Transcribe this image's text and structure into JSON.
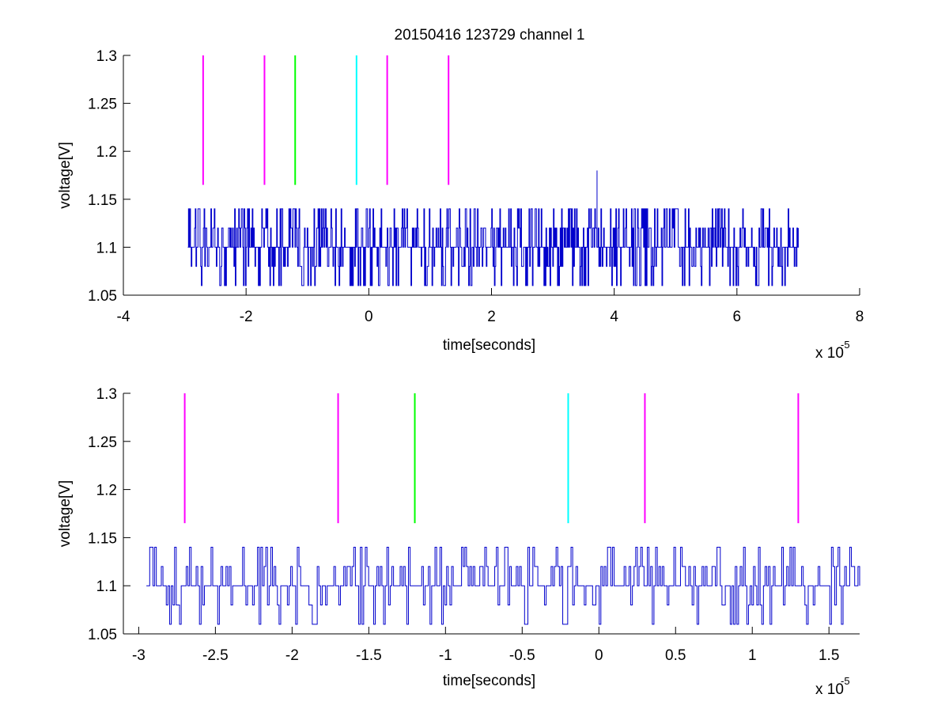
{
  "figure": {
    "title": "20150416 123729 channel 1"
  },
  "colors": {
    "signal": "#0000cc",
    "magenta": "#ff00ff",
    "green": "#00ff00",
    "cyan": "#00ffff",
    "axis": "#000000",
    "background": "#ffffff"
  },
  "chart_data": [
    {
      "type": "line",
      "title": "20150416 123729 channel 1",
      "xlabel": "time[seconds]",
      "ylabel": "voltage[V]",
      "x_multiplier": "x 10",
      "x_exponent": "-5",
      "xlim": [
        -4,
        8
      ],
      "ylim": [
        1.05,
        1.3
      ],
      "xticks": [
        -4,
        -2,
        0,
        2,
        4,
        6,
        8
      ],
      "xtick_labels": [
        "-4",
        "-2",
        "0",
        "2",
        "4",
        "6",
        "8"
      ],
      "yticks": [
        1.05,
        1.1,
        1.15,
        1.2,
        1.25,
        1.3
      ],
      "ytick_labels": [
        "1.05",
        "1.1",
        "1.15",
        "1.2",
        "1.25",
        "1.3"
      ],
      "grid": false,
      "series": [
        {
          "color": "#0000cc",
          "x_range": [
            -2.95,
            7.0
          ],
          "baseline": 1.1,
          "levels": [
            1.06,
            1.08,
            1.1,
            1.12,
            1.14
          ],
          "spike": {
            "x": 3.72,
            "y": 1.18
          }
        }
      ],
      "markers": [
        {
          "x": -2.7,
          "y_range": [
            1.165,
            1.3
          ],
          "color": "#ff00ff"
        },
        {
          "x": -1.7,
          "y_range": [
            1.165,
            1.3
          ],
          "color": "#ff00ff"
        },
        {
          "x": -1.2,
          "y_range": [
            1.165,
            1.3
          ],
          "color": "#00ff00"
        },
        {
          "x": -0.2,
          "y_range": [
            1.165,
            1.3
          ],
          "color": "#00ffff"
        },
        {
          "x": 0.3,
          "y_range": [
            1.165,
            1.3
          ],
          "color": "#ff00ff"
        },
        {
          "x": 1.3,
          "y_range": [
            1.165,
            1.3
          ],
          "color": "#ff00ff"
        }
      ]
    },
    {
      "type": "line",
      "title": "",
      "xlabel": "time[seconds]",
      "ylabel": "voltage[V]",
      "x_multiplier": "x 10",
      "x_exponent": "-5",
      "xlim": [
        -3.1,
        1.7
      ],
      "ylim": [
        1.05,
        1.3
      ],
      "xticks": [
        -3,
        -2.5,
        -2,
        -1.5,
        -1,
        -0.5,
        0,
        0.5,
        1,
        1.5
      ],
      "xtick_labels": [
        "-3",
        "-2.5",
        "-2",
        "-1.5",
        "-1",
        "-0.5",
        "0",
        "0.5",
        "1",
        "1.5"
      ],
      "yticks": [
        1.05,
        1.1,
        1.15,
        1.2,
        1.25,
        1.3
      ],
      "ytick_labels": [
        "1.05",
        "1.1",
        "1.15",
        "1.2",
        "1.25",
        "1.3"
      ],
      "grid": false,
      "series": [
        {
          "color": "#0000cc",
          "x_range": [
            -2.95,
            1.7
          ],
          "baseline": 1.1,
          "levels": [
            1.06,
            1.08,
            1.1,
            1.12,
            1.14
          ]
        }
      ],
      "markers": [
        {
          "x": -2.7,
          "y_range": [
            1.165,
            1.3
          ],
          "color": "#ff00ff"
        },
        {
          "x": -1.7,
          "y_range": [
            1.165,
            1.3
          ],
          "color": "#ff00ff"
        },
        {
          "x": -1.2,
          "y_range": [
            1.165,
            1.3
          ],
          "color": "#00ff00"
        },
        {
          "x": -0.2,
          "y_range": [
            1.165,
            1.3
          ],
          "color": "#00ffff"
        },
        {
          "x": 0.3,
          "y_range": [
            1.165,
            1.3
          ],
          "color": "#ff00ff"
        },
        {
          "x": 1.3,
          "y_range": [
            1.165,
            1.3
          ],
          "color": "#ff00ff"
        }
      ]
    }
  ]
}
